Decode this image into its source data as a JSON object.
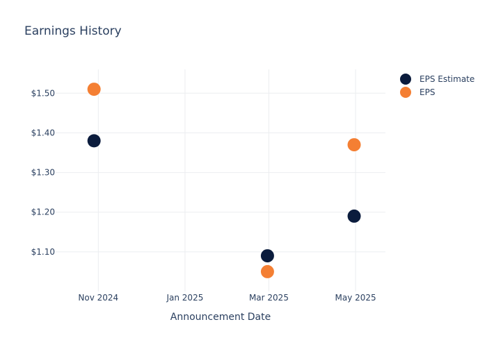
{
  "chart_data": {
    "type": "scatter",
    "title": "Earnings History",
    "xlabel": "Announcement Date",
    "ylabel": "",
    "x_axis_type": "date",
    "xlim": [
      "2024-10-02",
      "2025-05-22"
    ],
    "ylim": [
      1.0,
      1.56
    ],
    "x_ticks": [
      {
        "date": "2024-11-01",
        "label": "Nov 2024"
      },
      {
        "date": "2025-01-01",
        "label": "Jan 2025"
      },
      {
        "date": "2025-03-01",
        "label": "Mar 2025"
      },
      {
        "date": "2025-05-01",
        "label": "May 2025"
      }
    ],
    "y_ticks": [
      {
        "value": 1.1,
        "label": "$1.10"
      },
      {
        "value": 1.2,
        "label": "$1.20"
      },
      {
        "value": 1.3,
        "label": "$1.30"
      },
      {
        "value": 1.4,
        "label": "$1.40"
      },
      {
        "value": 1.5,
        "label": "$1.50"
      }
    ],
    "grid": true,
    "legend_position": "top-right",
    "series": [
      {
        "name": "EPS Estimate",
        "color": "#0b1c3d",
        "points": [
          {
            "x": "2024-10-29",
            "y": 1.38
          },
          {
            "x": "2025-02-28",
            "y": 1.09
          },
          {
            "x": "2025-04-30",
            "y": 1.19
          }
        ]
      },
      {
        "name": "EPS",
        "color": "#f47f33",
        "points": [
          {
            "x": "2024-10-29",
            "y": 1.51
          },
          {
            "x": "2025-02-28",
            "y": 1.05
          },
          {
            "x": "2025-04-30",
            "y": 1.37
          }
        ]
      }
    ]
  }
}
